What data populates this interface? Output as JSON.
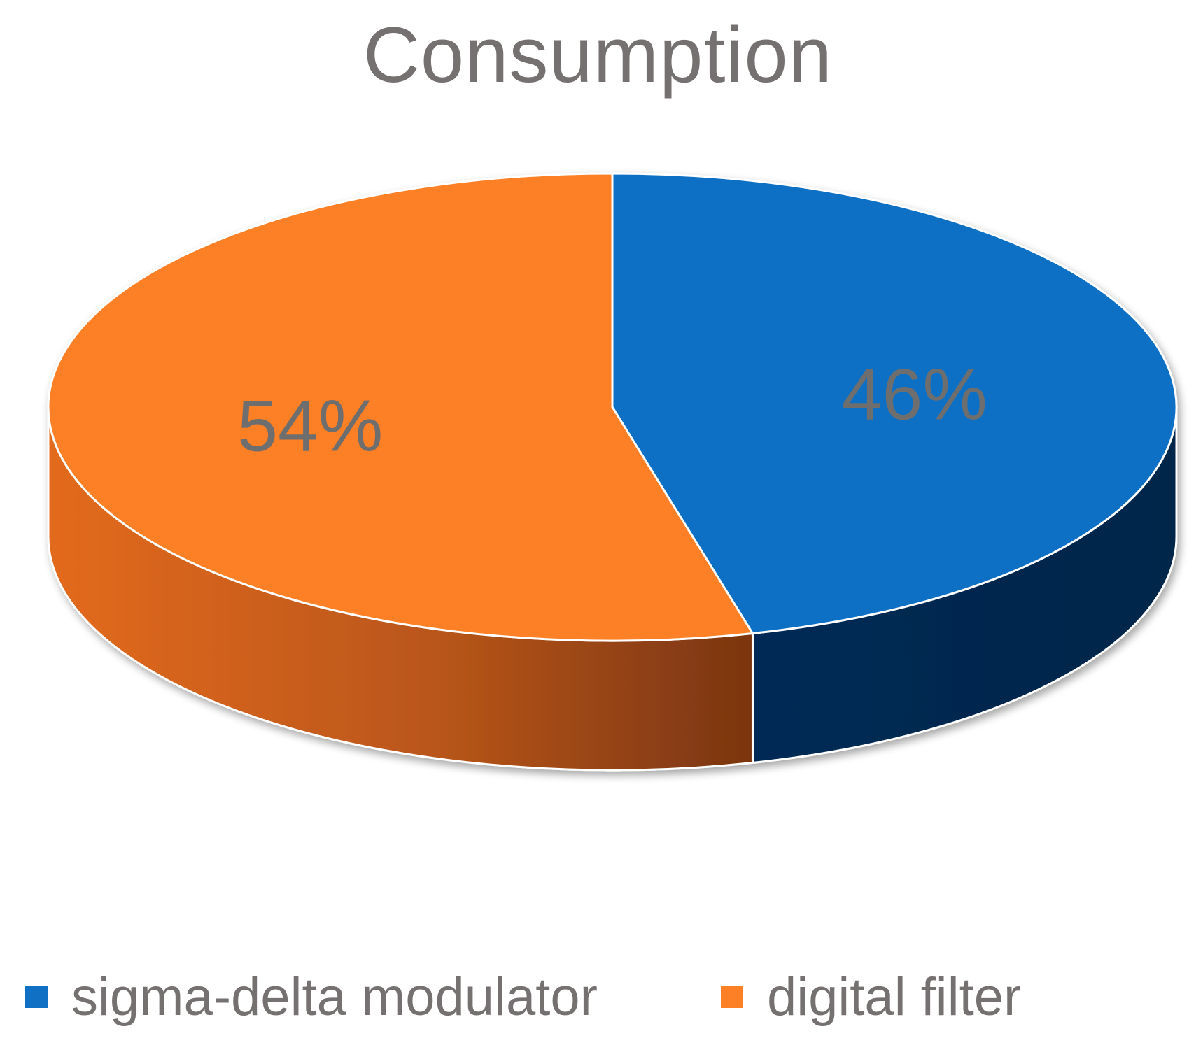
{
  "chart_data": {
    "type": "pie",
    "title": "Consumption",
    "style": "3d",
    "legend_position": "bottom",
    "slices": [
      {
        "name": "sigma-delta modulator",
        "value": 46,
        "label": "46%",
        "color": "#1070C4",
        "side_color": "#002850"
      },
      {
        "name": "digital filter",
        "value": 54,
        "label": "54%",
        "color": "#FD7F26",
        "side_color": "#C45A18"
      }
    ],
    "label_color": "#6E6E6E"
  }
}
